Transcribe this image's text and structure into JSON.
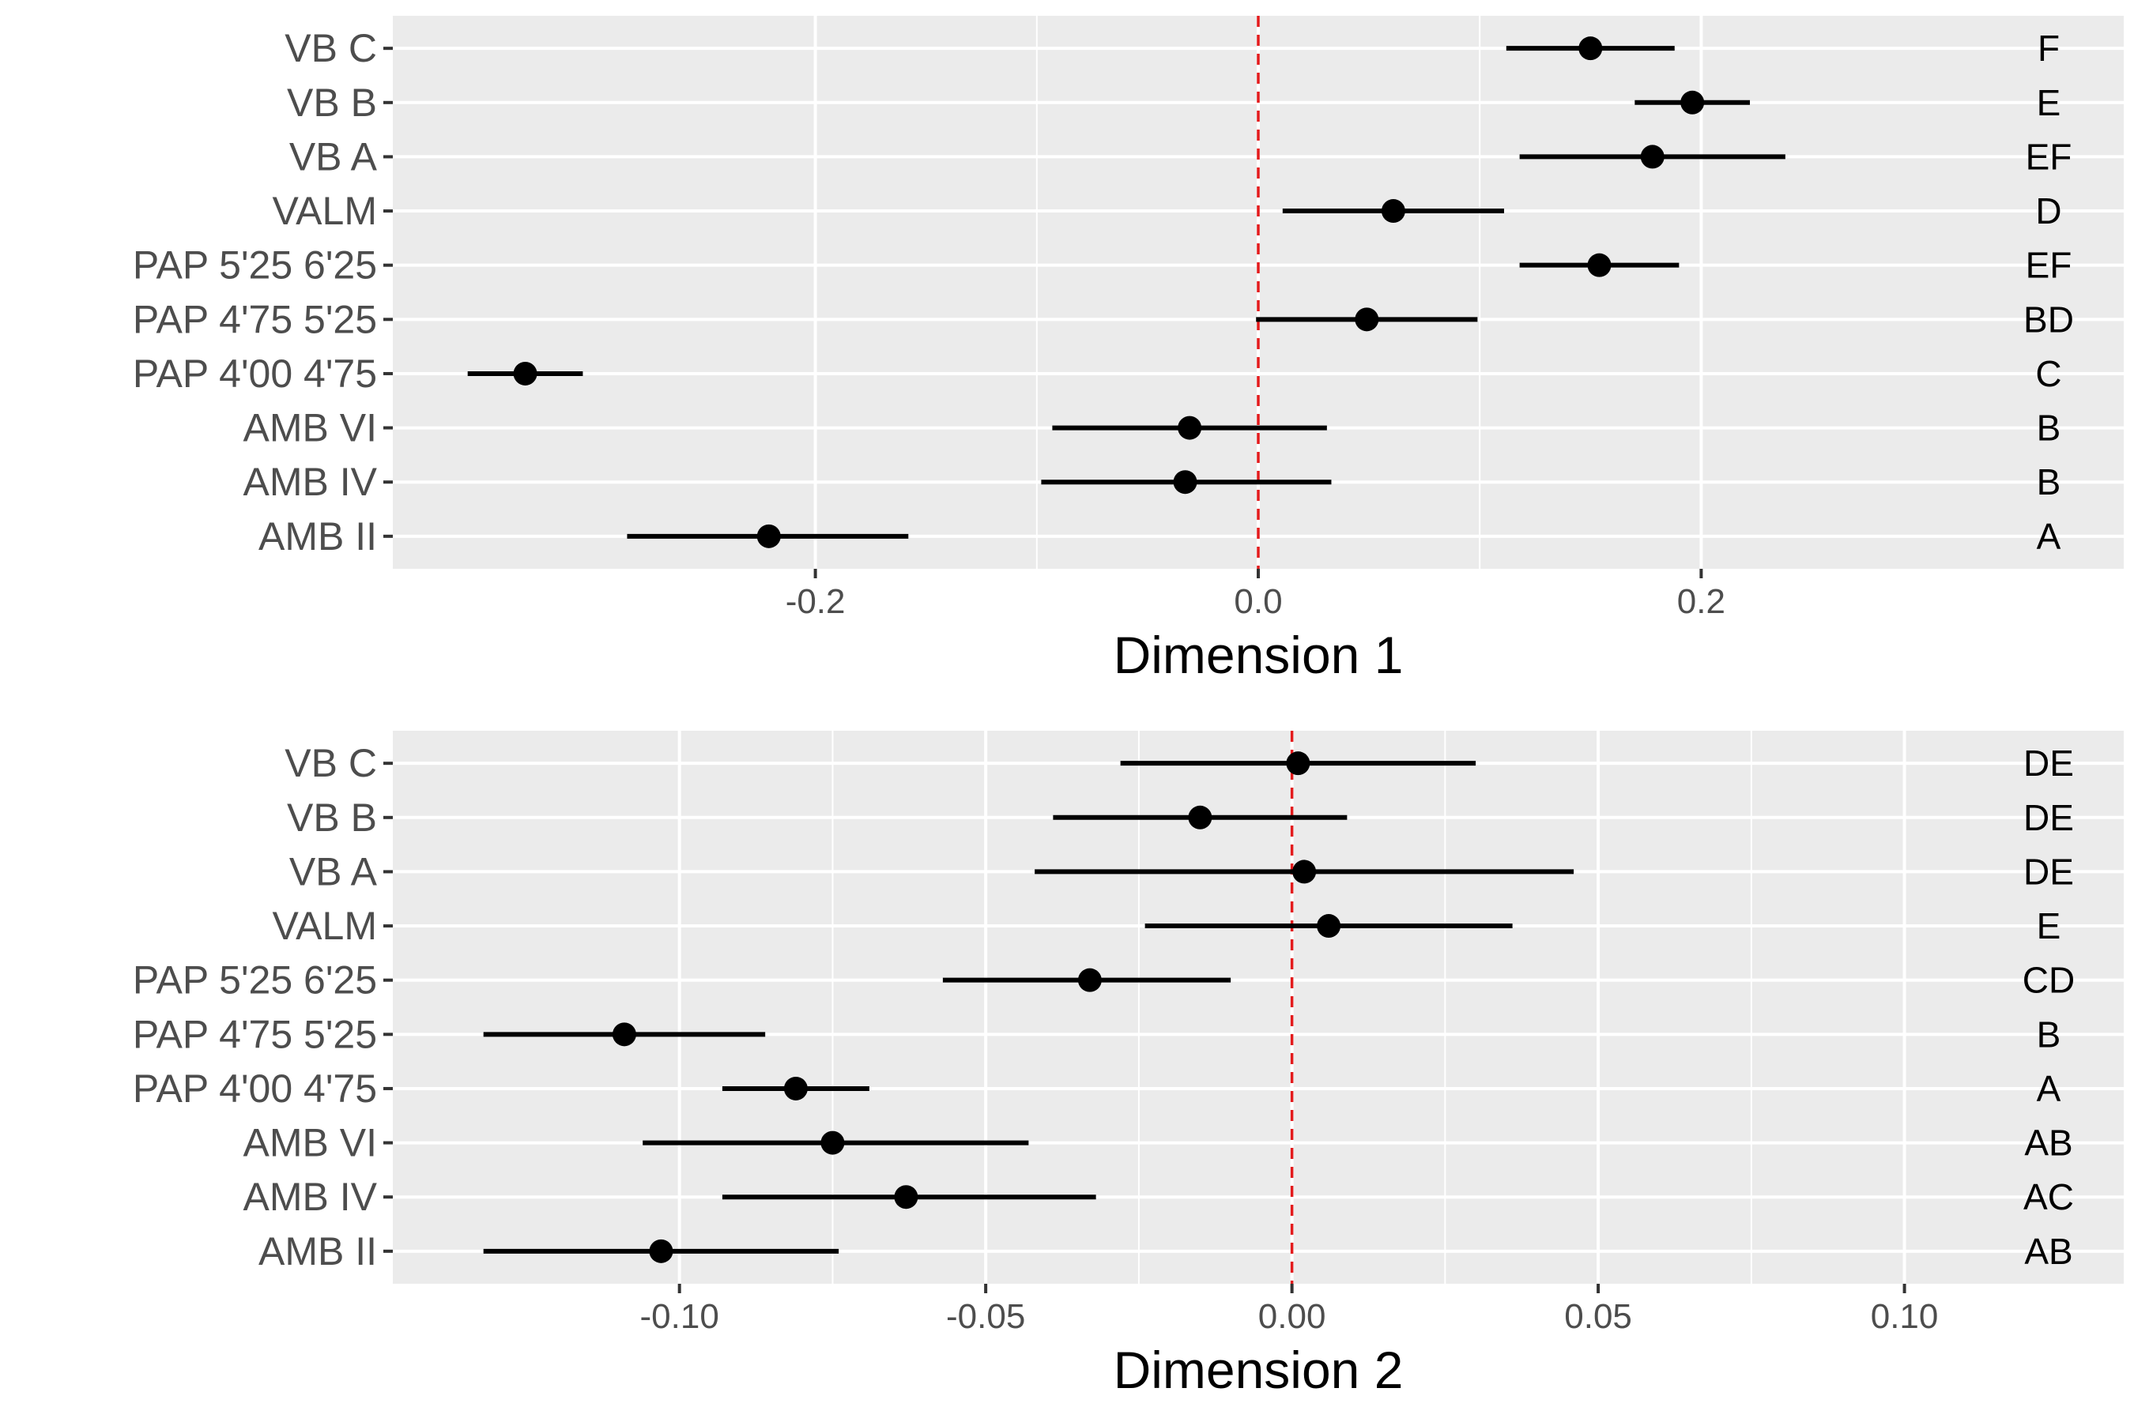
{
  "chart_data": [
    {
      "type": "scatter",
      "subtype": "point-range",
      "xlabel": "Dimension 1",
      "ylabel": "",
      "xlim": [
        -0.3908,
        0.3908
      ],
      "x_ticks": [
        -0.2,
        0.0,
        0.2
      ],
      "x_tick_labels": [
        "-0.2",
        "0.0",
        "0.2"
      ],
      "reference_line": {
        "x": 0,
        "color": "#e31a1c",
        "style": "dashed"
      },
      "grid": true,
      "legend": "none",
      "categories": [
        "VB C",
        "VB B",
        "VB A",
        "VALM",
        "PAP 5'25 6'25",
        "PAP 4'75 5'25",
        "PAP 4'00 4'75",
        "AMB VI",
        "AMB IV",
        "AMB II"
      ],
      "points": [
        {
          "label": "VB C",
          "x": 0.15,
          "lower": 0.112,
          "upper": 0.188,
          "group": "F"
        },
        {
          "label": "VB B",
          "x": 0.196,
          "lower": 0.17,
          "upper": 0.222,
          "group": "E"
        },
        {
          "label": "VB A",
          "x": 0.178,
          "lower": 0.118,
          "upper": 0.238,
          "group": "EF"
        },
        {
          "label": "VALM",
          "x": 0.061,
          "lower": 0.011,
          "upper": 0.111,
          "group": "D"
        },
        {
          "label": "PAP 5'25 6'25",
          "x": 0.154,
          "lower": 0.118,
          "upper": 0.19,
          "group": "EF"
        },
        {
          "label": "PAP 4'75 5'25",
          "x": 0.049,
          "lower": -0.001,
          "upper": 0.099,
          "group": "BD"
        },
        {
          "label": "PAP 4'00 4'75",
          "x": -0.331,
          "lower": -0.357,
          "upper": -0.305,
          "group": "C"
        },
        {
          "label": "AMB VI",
          "x": -0.031,
          "lower": -0.093,
          "upper": 0.031,
          "group": "B"
        },
        {
          "label": "AMB IV",
          "x": -0.033,
          "lower": -0.098,
          "upper": 0.033,
          "group": "B"
        },
        {
          "label": "AMB II",
          "x": -0.221,
          "lower": -0.285,
          "upper": -0.158,
          "group": "A"
        }
      ]
    },
    {
      "type": "scatter",
      "subtype": "point-range",
      "xlabel": "Dimension 2",
      "ylabel": "",
      "xlim": [
        -0.1468,
        0.1358
      ],
      "x_ticks": [
        -0.1,
        -0.05,
        0.0,
        0.05,
        0.1
      ],
      "x_tick_labels": [
        "-0.10",
        "-0.05",
        "0.00",
        "0.05",
        "0.10"
      ],
      "reference_line": {
        "x": 0,
        "color": "#e31a1c",
        "style": "dashed"
      },
      "grid": true,
      "legend": "none",
      "categories": [
        "VB C",
        "VB B",
        "VB A",
        "VALM",
        "PAP 5'25 6'25",
        "PAP 4'75 5'25",
        "PAP 4'00 4'75",
        "AMB VI",
        "AMB IV",
        "AMB II"
      ],
      "points": [
        {
          "label": "VB C",
          "x": 0.001,
          "lower": -0.028,
          "upper": 0.03,
          "group": "DE"
        },
        {
          "label": "VB B",
          "x": -0.015,
          "lower": -0.039,
          "upper": 0.009,
          "group": "DE"
        },
        {
          "label": "VB A",
          "x": 0.002,
          "lower": -0.042,
          "upper": 0.046,
          "group": "DE"
        },
        {
          "label": "VALM",
          "x": 0.006,
          "lower": -0.024,
          "upper": 0.036,
          "group": "E"
        },
        {
          "label": "PAP 5'25 6'25",
          "x": -0.033,
          "lower": -0.057,
          "upper": -0.01,
          "group": "CD"
        },
        {
          "label": "PAP 4'75 5'25",
          "x": -0.109,
          "lower": -0.132,
          "upper": -0.086,
          "group": "B"
        },
        {
          "label": "PAP 4'00 4'75",
          "x": -0.081,
          "lower": -0.093,
          "upper": -0.069,
          "group": "A"
        },
        {
          "label": "AMB VI",
          "x": -0.075,
          "lower": -0.106,
          "upper": -0.043,
          "group": "AB"
        },
        {
          "label": "AMB IV",
          "x": -0.063,
          "lower": -0.093,
          "upper": -0.032,
          "group": "AC"
        },
        {
          "label": "AMB II",
          "x": -0.103,
          "lower": -0.132,
          "upper": -0.074,
          "group": "AB"
        }
      ]
    }
  ]
}
